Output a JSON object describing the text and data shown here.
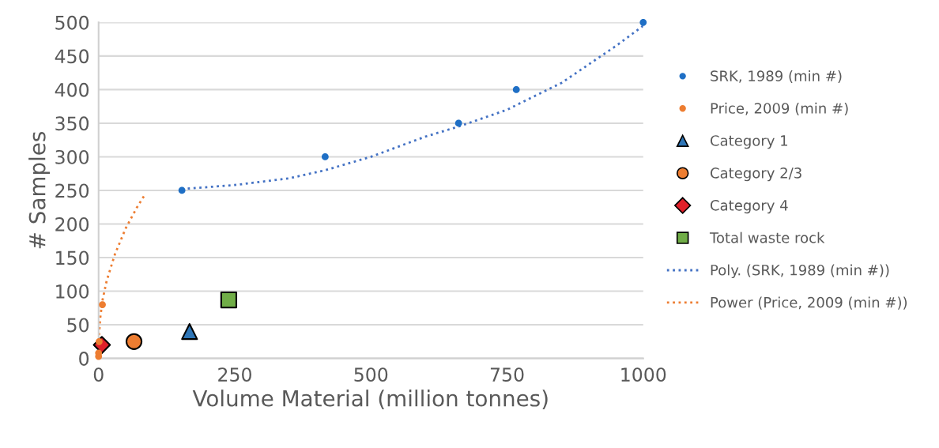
{
  "chart_data": {
    "type": "scatter",
    "xlabel": "Volume Material (million tonnes)",
    "ylabel": "# Samples",
    "xlim": [
      0,
      1000
    ],
    "xticks": [
      0,
      250,
      500,
      750,
      1000
    ],
    "ylim": [
      0,
      500
    ],
    "yticks": [
      0,
      50,
      100,
      150,
      200,
      250,
      300,
      350,
      400,
      450,
      500
    ],
    "grid": "y",
    "legend": "right",
    "series": [
      {
        "name": "SRK, 1989 (min #)",
        "marker": "circle",
        "color": "#1f6fc5",
        "x": [
          153,
          416,
          661,
          767,
          1000
        ],
        "values": [
          250,
          300,
          350,
          400,
          500
        ]
      },
      {
        "name": "Price, 2009 (min #)",
        "marker": "circle",
        "color": "#ed7d31",
        "x": [
          0,
          0,
          1,
          7
        ],
        "values": [
          3,
          8,
          25,
          80
        ]
      },
      {
        "name": "Category 1",
        "marker": "triangle",
        "color": "#2e75b6",
        "x": [
          167
        ],
        "values": [
          40
        ]
      },
      {
        "name": "Category 2/3",
        "marker": "circle",
        "color": "#ed7d31",
        "x": [
          65
        ],
        "values": [
          25
        ]
      },
      {
        "name": "Category 4",
        "marker": "diamond",
        "color": "#e0202a",
        "x": [
          6
        ],
        "values": [
          20
        ]
      },
      {
        "name": "Total waste rock",
        "marker": "square",
        "color": "#70ad47",
        "x": [
          239
        ],
        "values": [
          87
        ]
      },
      {
        "name": "Poly. (SRK, 1989 (min #))",
        "type": "line",
        "marker": "none",
        "line_style": "dotted",
        "color": "#4472c4",
        "x": [
          153,
          250,
          350,
          416,
          500,
          600,
          661,
          750,
          850,
          950,
          1000
        ],
        "values": [
          252,
          258,
          268,
          280,
          300,
          330,
          345,
          370,
          410,
          465,
          495
        ]
      },
      {
        "name": "Power (Price, 2009 (min #))",
        "type": "line",
        "marker": "none",
        "line_style": "dotted",
        "color": "#ed7d31",
        "x": [
          0.4,
          1,
          3,
          7,
          15,
          30,
          50,
          70,
          86
        ],
        "values": [
          26,
          38,
          60,
          86,
          116,
          155,
          194,
          224,
          245
        ]
      }
    ]
  }
}
